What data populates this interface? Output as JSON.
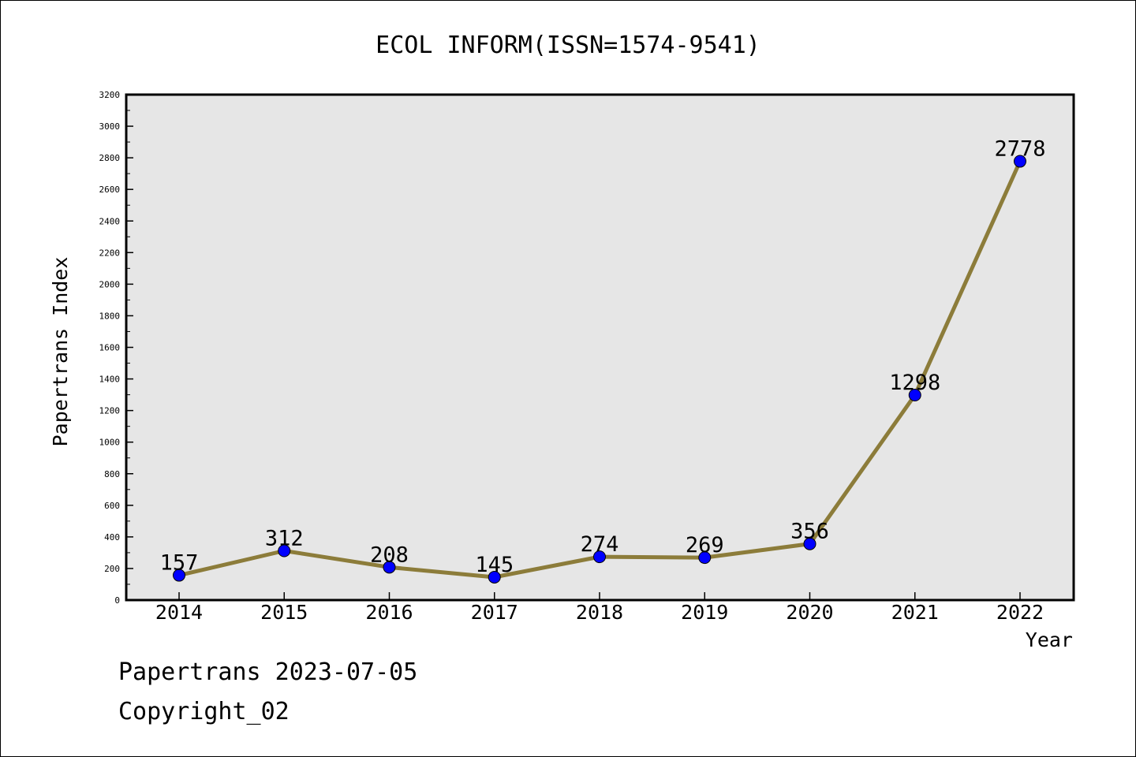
{
  "chart_data": {
    "type": "line",
    "title": "ECOL INFORM(ISSN=1574-9541)",
    "xlabel": "Year",
    "ylabel": "Papertrans Index",
    "categories": [
      "2014",
      "2015",
      "2016",
      "2017",
      "2018",
      "2019",
      "2020",
      "2021",
      "2022"
    ],
    "series": [
      {
        "values": [
          157,
          312,
          208,
          145,
          274,
          269,
          356,
          1298,
          2778
        ]
      }
    ],
    "data_labels": [
      "157",
      "312",
      "208",
      "145",
      "274",
      "269",
      "356",
      "1298",
      "2778"
    ],
    "ylim": [
      0,
      3200
    ],
    "yticks": [
      0,
      200,
      400,
      600,
      800,
      1000,
      1200,
      1400,
      1600,
      1800,
      2000,
      2200,
      2400,
      2600,
      2800,
      3000,
      3200
    ],
    "grid": false,
    "legend": "none",
    "colors": {
      "line": "#8c7c3a",
      "marker": "#0000ff",
      "plot_background": "#e6e6e6"
    }
  },
  "footer": {
    "line1": "Papertrans 2023-07-05",
    "line2": "Copyright_02"
  }
}
